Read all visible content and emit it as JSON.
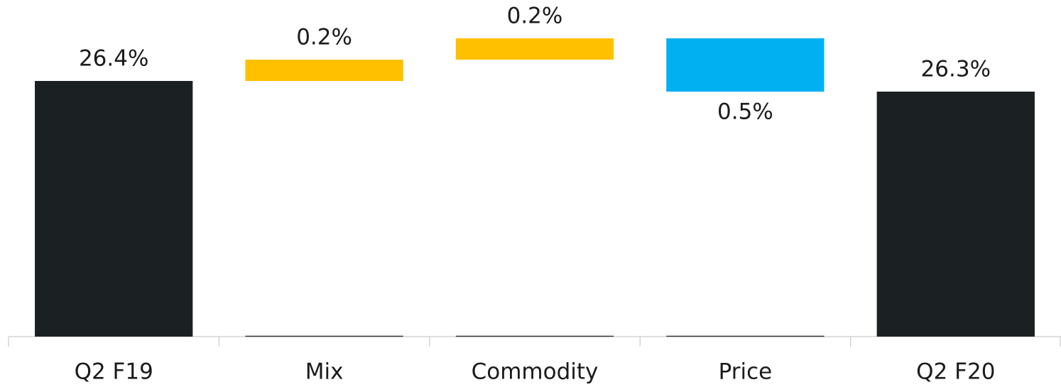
{
  "chart_data": {
    "type": "waterfall",
    "categories": [
      "Q2 F19",
      "Mix",
      "Commodity",
      "Price",
      "Q2 F20"
    ],
    "values": [
      26.4,
      0.2,
      0.2,
      -0.5,
      26.3
    ],
    "value_labels": [
      "26.4%",
      "0.2%",
      "0.2%",
      "0.5%",
      "26.3%"
    ],
    "ylim": [
      24,
      27
    ],
    "total_color": "#1b2023",
    "increase_color": "#ffc000",
    "decrease_color": "#00b0f0"
  }
}
